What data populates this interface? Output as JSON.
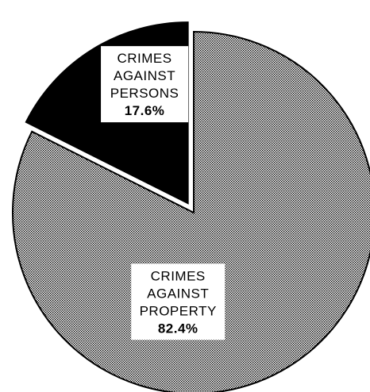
{
  "chart_data": {
    "type": "pie",
    "slices": [
      {
        "label_lines": [
          "CRIMES",
          "AGAINST",
          "PROPERTY"
        ],
        "value": 82.4,
        "value_label": "82.4%",
        "fill": "hatched",
        "exploded": false
      },
      {
        "label_lines": [
          "CRIMES",
          "AGAINST",
          "PERSONS"
        ],
        "value": 17.6,
        "value_label": "17.6%",
        "fill": "solid-black",
        "exploded": true
      }
    ],
    "colors": {
      "ink": "#000000",
      "paper": "#ffffff"
    }
  }
}
